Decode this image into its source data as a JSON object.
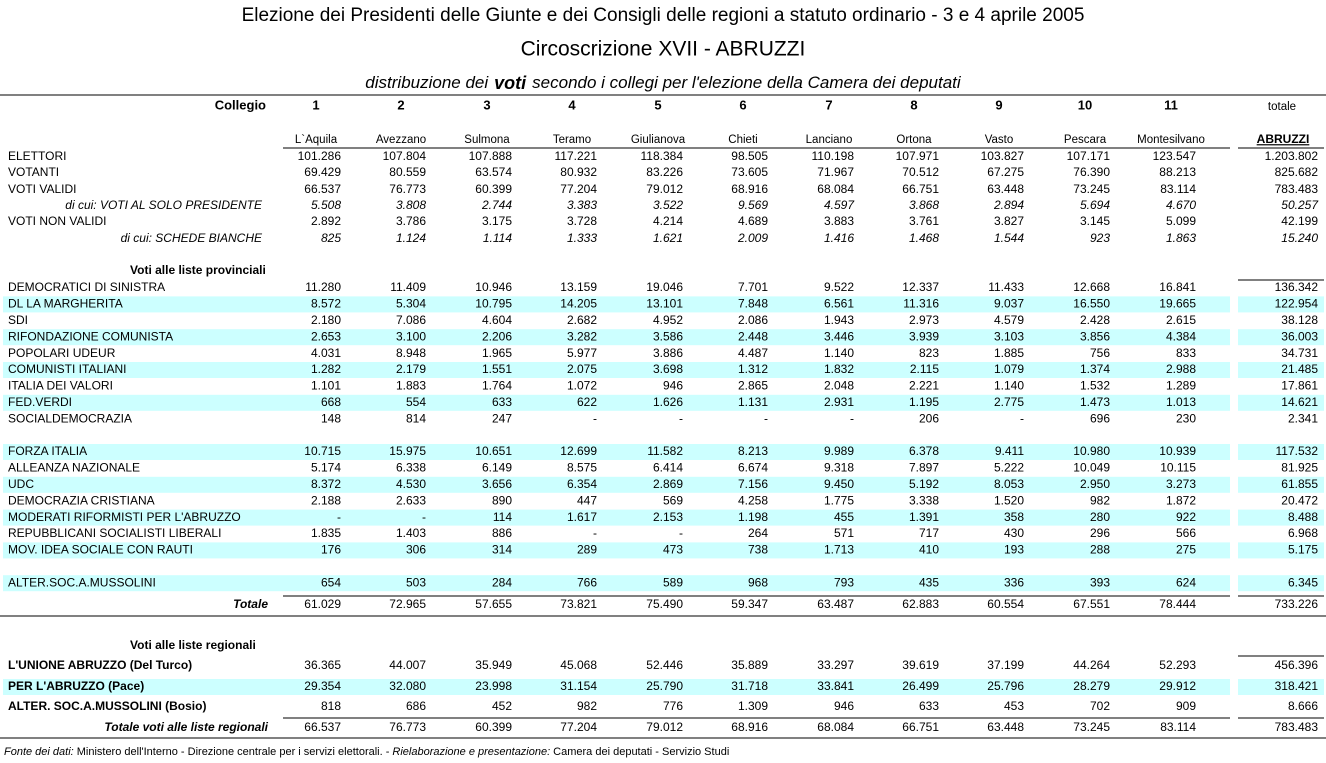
{
  "header": {
    "title": "Elezione dei Presidenti delle Giunte e dei Consigli delle regioni a statuto ordinario - 3 e 4 aprile 2005",
    "subtitle": "Circoscrizione XVII - ABRUZZI",
    "heading": {
      "pre": "distribuzione dei",
      "emphasis": "voti",
      "post": "secondo i collegi per l'elezione della Camera dei deputati"
    }
  },
  "table": {
    "collegio_label": "Collegio",
    "column_numbers": [
      1,
      2,
      3,
      4,
      5,
      6,
      7,
      8,
      9,
      10,
      11
    ],
    "total_label": "totale",
    "column_names": [
      "L`Aquila",
      "Avezzano",
      "Sulmona",
      "Teramo",
      "Giulianova",
      "Chieti",
      "Lanciano",
      "Ortona",
      "Vasto",
      "Pescara",
      "Montesilvano"
    ],
    "total_name": "ABRUZZI",
    "sections": [
      {
        "rows": [
          {
            "label": "ELETTORI",
            "values": [
              "101.286",
              "107.804",
              "107.888",
              "117.221",
              "118.384",
              "98.505",
              "110.198",
              "107.971",
              "103.827",
              "107.171",
              "123.547"
            ],
            "total": "1.203.802"
          },
          {
            "label": "VOTANTI",
            "values": [
              "69.429",
              "80.559",
              "63.574",
              "80.932",
              "83.226",
              "73.605",
              "71.967",
              "70.512",
              "67.275",
              "76.390",
              "88.213"
            ],
            "total": "825.682"
          },
          {
            "label": "VOTI VALIDI",
            "values": [
              "66.537",
              "76.773",
              "60.399",
              "77.204",
              "79.012",
              "68.916",
              "68.084",
              "66.751",
              "63.448",
              "73.245",
              "83.114"
            ],
            "total": "783.483"
          },
          {
            "label": "di cui: VOTI AL SOLO PRESIDENTE",
            "values": [
              "5.508",
              "3.808",
              "2.744",
              "3.383",
              "3.522",
              "9.569",
              "4.597",
              "3.868",
              "2.894",
              "5.694",
              "4.670"
            ],
            "total": "50.257"
          },
          {
            "label": "VOTI NON VALIDI",
            "values": [
              "2.892",
              "3.786",
              "3.175",
              "3.728",
              "4.214",
              "4.689",
              "3.883",
              "3.761",
              "3.827",
              "3.145",
              "5.099"
            ],
            "total": "42.199"
          },
          {
            "label": "di cui:  SCHEDE BIANCHE",
            "values": [
              "825",
              "1.124",
              "1.114",
              "1.333",
              "1.621",
              "2.009",
              "1.416",
              "1.468",
              "1.544",
              "923",
              "1.863"
            ],
            "total": "15.240"
          }
        ]
      },
      {
        "title": "Voti alle liste provinciali",
        "rows": [
          {
            "label": "DEMOCRATICI DI SINISTRA",
            "values": [
              "11.280",
              "11.409",
              "10.946",
              "13.159",
              "19.046",
              "7.701",
              "9.522",
              "12.337",
              "11.433",
              "12.668",
              "16.841"
            ],
            "total": "136.342"
          },
          {
            "label": "DL LA MARGHERITA",
            "values": [
              "8.572",
              "5.304",
              "10.795",
              "14.205",
              "13.101",
              "7.848",
              "6.561",
              "11.316",
              "9.037",
              "16.550",
              "19.665"
            ],
            "total": "122.954"
          },
          {
            "label": "SDI",
            "values": [
              "2.180",
              "7.086",
              "4.604",
              "2.682",
              "4.952",
              "2.086",
              "1.943",
              "2.973",
              "4.579",
              "2.428",
              "2.615"
            ],
            "total": "38.128"
          },
          {
            "label": "RIFONDAZIONE COMUNISTA",
            "values": [
              "2.653",
              "3.100",
              "2.206",
              "3.282",
              "3.586",
              "2.448",
              "3.446",
              "3.939",
              "3.103",
              "3.856",
              "4.384"
            ],
            "total": "36.003"
          },
          {
            "label": "POPOLARI UDEUR",
            "values": [
              "4.031",
              "8.948",
              "1.965",
              "5.977",
              "3.886",
              "4.487",
              "1.140",
              "823",
              "1.885",
              "756",
              "833"
            ],
            "total": "34.731"
          },
          {
            "label": "COMUNISTI ITALIANI",
            "values": [
              "1.282",
              "2.179",
              "1.551",
              "2.075",
              "3.698",
              "1.312",
              "1.832",
              "2.115",
              "1.079",
              "1.374",
              "2.988"
            ],
            "total": "21.485"
          },
          {
            "label": "ITALIA DEI VALORI",
            "values": [
              "1.101",
              "1.883",
              "1.764",
              "1.072",
              "946",
              "2.865",
              "2.048",
              "2.221",
              "1.140",
              "1.532",
              "1.289"
            ],
            "total": "17.861"
          },
          {
            "label": "FED.VERDI",
            "values": [
              "668",
              "554",
              "633",
              "622",
              "1.626",
              "1.131",
              "2.931",
              "1.195",
              "2.775",
              "1.473",
              "1.013"
            ],
            "total": "14.621"
          },
          {
            "label": "SOCIALDEMOCRAZIA",
            "values": [
              "148",
              "814",
              "247",
              "-",
              "-",
              "-",
              "-",
              "206",
              "-",
              "696",
              "230"
            ],
            "total": "2.341"
          },
          {
            "label": "FORZA ITALIA",
            "values": [
              "10.715",
              "15.975",
              "10.651",
              "12.699",
              "11.582",
              "8.213",
              "9.989",
              "6.378",
              "9.411",
              "10.980",
              "10.939"
            ],
            "total": "117.532"
          },
          {
            "label": "ALLEANZA NAZIONALE",
            "values": [
              "5.174",
              "6.338",
              "6.149",
              "8.575",
              "6.414",
              "6.674",
              "9.318",
              "7.897",
              "5.222",
              "10.049",
              "10.115"
            ],
            "total": "81.925"
          },
          {
            "label": "UDC",
            "values": [
              "8.372",
              "4.530",
              "3.656",
              "6.354",
              "2.869",
              "7.156",
              "9.450",
              "5.192",
              "8.053",
              "2.950",
              "3.273"
            ],
            "total": "61.855"
          },
          {
            "label": "DEMOCRAZIA CRISTIANA",
            "values": [
              "2.188",
              "2.633",
              "890",
              "447",
              "569",
              "4.258",
              "1.775",
              "3.338",
              "1.520",
              "982",
              "1.872"
            ],
            "total": "20.472"
          },
          {
            "label": "MODERATI RIFORMISTI PER L'ABRUZZO",
            "values": [
              "-",
              "-",
              "114",
              "1.617",
              "2.153",
              "1.198",
              "455",
              "1.391",
              "358",
              "280",
              "922"
            ],
            "total": "8.488"
          },
          {
            "label": "REPUBBLICANI SOCIALISTI LIBERALI",
            "values": [
              "1.835",
              "1.403",
              "886",
              "-",
              "-",
              "264",
              "571",
              "717",
              "430",
              "296",
              "566"
            ],
            "total": "6.968"
          },
          {
            "label": "MOV. IDEA SOCIALE CON RAUTI",
            "values": [
              "176",
              "306",
              "314",
              "289",
              "473",
              "738",
              "1.713",
              "410",
              "193",
              "288",
              "275"
            ],
            "total": "5.175"
          },
          {
            "label": "ALTER.SOC.A.MUSSOLINI",
            "values": [
              "654",
              "503",
              "284",
              "766",
              "589",
              "968",
              "793",
              "435",
              "336",
              "393",
              "624"
            ],
            "total": "6.345"
          }
        ],
        "total": {
          "label": "Totale",
          "values": [
            "61.029",
            "72.965",
            "57.655",
            "73.821",
            "75.490",
            "59.347",
            "63.487",
            "62.883",
            "60.554",
            "67.551",
            "78.444"
          ],
          "total": "733.226"
        }
      },
      {
        "title": "Voti alle liste regionali",
        "rows": [
          {
            "label": "L'UNIONE ABRUZZO (Del Turco)",
            "values": [
              "36.365",
              "44.007",
              "35.949",
              "45.068",
              "52.446",
              "35.889",
              "33.297",
              "39.619",
              "37.199",
              "44.264",
              "52.293"
            ],
            "total": "456.396"
          },
          {
            "label": "PER L'ABRUZZO (Pace)",
            "values": [
              "29.354",
              "32.080",
              "23.998",
              "31.154",
              "25.790",
              "31.718",
              "33.841",
              "26.499",
              "25.796",
              "28.279",
              "29.912"
            ],
            "total": "318.421"
          },
          {
            "label": "ALTER. SOC.A.MUSSOLINI (Bosio)",
            "values": [
              "818",
              "686",
              "452",
              "982",
              "776",
              "1.309",
              "946",
              "633",
              "453",
              "702",
              "909"
            ],
            "total": "8.666"
          }
        ],
        "total": {
          "label": "Totale voti alle liste regionali",
          "values": [
            "66.537",
            "76.773",
            "60.399",
            "77.204",
            "79.012",
            "68.916",
            "68.084",
            "66.751",
            "63.448",
            "73.245",
            "83.114"
          ],
          "total": "783.483"
        }
      }
    ]
  },
  "footer": {
    "source_label": "Fonte dei dati:",
    "source": "Ministero dell'Interno - Direzione centrale per i servizi elettorali. -",
    "elaboration_label": "Rielaborazione e presentazione:",
    "elaboration": "Camera dei deputati - Servizio Studi"
  }
}
